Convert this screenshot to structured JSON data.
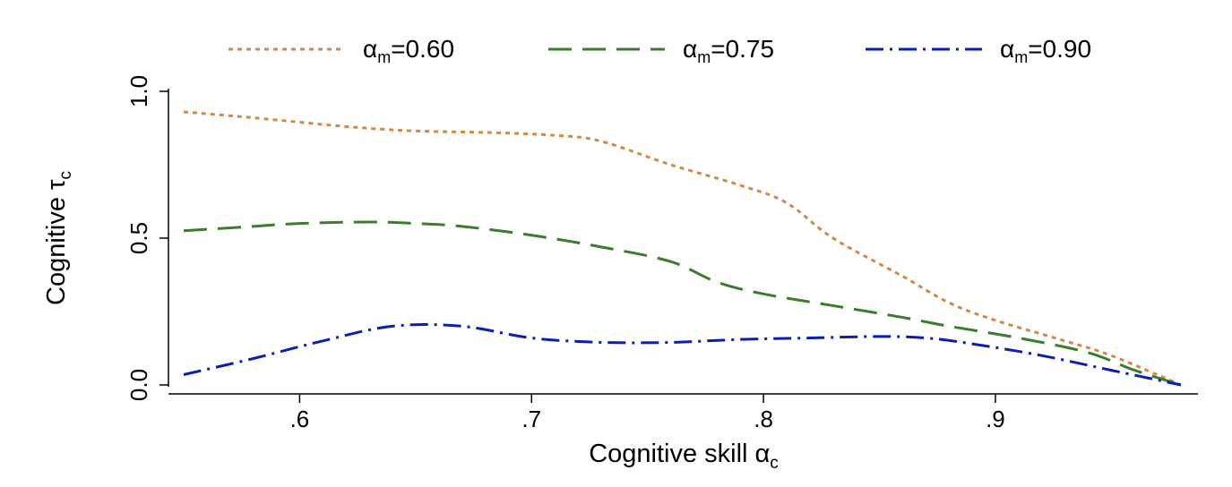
{
  "chart_data": {
    "type": "line",
    "xlabel": "Cognitive skill α",
    "xlabel_sub": "c",
    "ylabel": "Cognitive τ",
    "ylabel_sub": "c",
    "xlim": [
      0.55,
      0.98
    ],
    "ylim": [
      0,
      1
    ],
    "xticks": [
      0.6,
      0.7,
      0.8,
      0.9
    ],
    "xtick_labels": [
      ".6",
      ".7",
      ".8",
      ".9"
    ],
    "yticks": [
      0,
      0.5,
      1
    ],
    "ytick_labels": [
      "0.0",
      "0.5",
      "1.0"
    ],
    "grid": false,
    "legend_position": "top",
    "series": [
      {
        "name": "α",
        "name_sub": "m",
        "name_suffix": "=0.60",
        "color": "#d08a48",
        "style": "dotted",
        "x": [
          0.55,
          0.58,
          0.62,
          0.65,
          0.68,
          0.71,
          0.73,
          0.76,
          0.79,
          0.81,
          0.83,
          0.86,
          0.88,
          0.9,
          0.93,
          0.95,
          0.98
        ],
        "y": [
          0.93,
          0.91,
          0.88,
          0.865,
          0.86,
          0.85,
          0.83,
          0.75,
          0.68,
          0.62,
          0.5,
          0.37,
          0.28,
          0.22,
          0.15,
          0.1,
          0.0
        ]
      },
      {
        "name": "α",
        "name_sub": "m",
        "name_suffix": "=0.75",
        "color": "#3a7d2c",
        "style": "dashed",
        "x": [
          0.55,
          0.58,
          0.6,
          0.63,
          0.65,
          0.67,
          0.7,
          0.73,
          0.76,
          0.78,
          0.8,
          0.83,
          0.86,
          0.88,
          0.91,
          0.94,
          0.96,
          0.98
        ],
        "y": [
          0.525,
          0.54,
          0.55,
          0.555,
          0.55,
          0.54,
          0.51,
          0.47,
          0.42,
          0.35,
          0.31,
          0.27,
          0.23,
          0.2,
          0.16,
          0.11,
          0.05,
          0.0
        ]
      },
      {
        "name": "α",
        "name_sub": "m",
        "name_suffix": "=0.90",
        "color": "#0a1eb4",
        "style": "dashdot",
        "x": [
          0.55,
          0.58,
          0.61,
          0.64,
          0.67,
          0.7,
          0.73,
          0.76,
          0.79,
          0.82,
          0.85,
          0.87,
          0.89,
          0.92,
          0.95,
          0.98
        ],
        "y": [
          0.035,
          0.09,
          0.15,
          0.2,
          0.2,
          0.16,
          0.145,
          0.145,
          0.155,
          0.16,
          0.165,
          0.16,
          0.14,
          0.1,
          0.05,
          0.0
        ]
      }
    ]
  }
}
